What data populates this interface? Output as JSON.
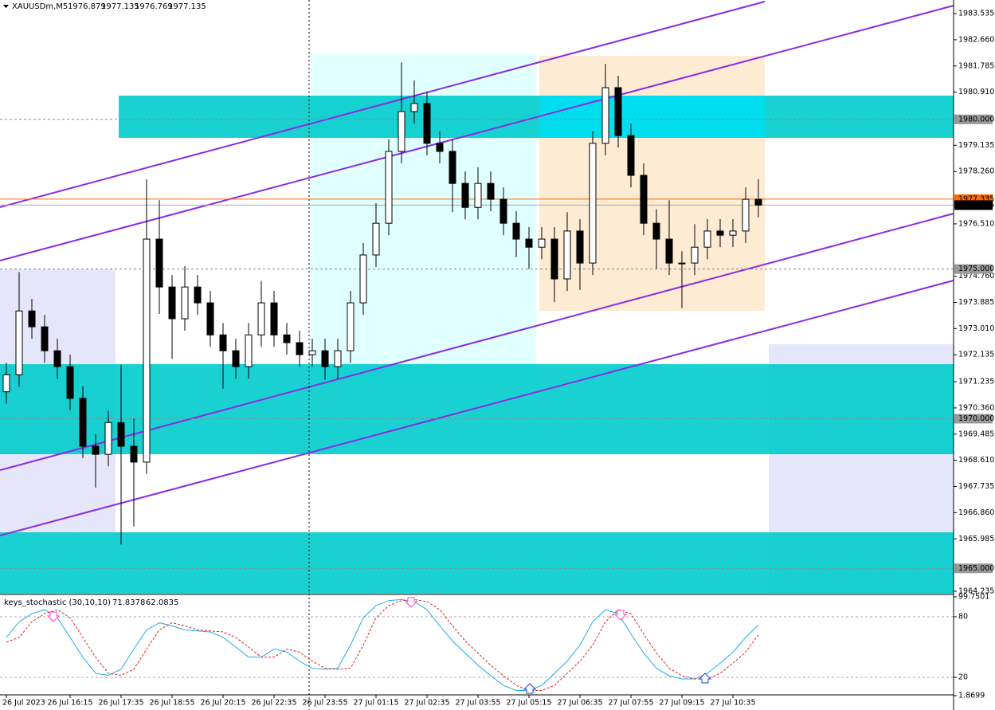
{
  "chart_data": [
    {
      "type": "candlestick",
      "symbol": "XAUUSDm,M5",
      "bar_open": 1976.879,
      "bar_high": 1977.135,
      "bar_low": 1976.769,
      "bar_close": 1977.135,
      "categories": [
        "26 Jul 2023",
        null,
        null,
        null,
        null,
        "26 Jul 16:15",
        null,
        null,
        null,
        "26 Jul 17:35",
        null,
        null,
        null,
        "26 Jul 18:55",
        null,
        null,
        null,
        "26 Jul 20:15",
        null,
        null,
        null,
        "26 Jul 22:35",
        null,
        null,
        null,
        "26 Jul 23:55",
        null,
        null,
        null,
        "27 Jul 01:15",
        null,
        null,
        null,
        "27 Jul 02:35",
        null,
        null,
        null,
        "27 Jul 03:55",
        null,
        null,
        null,
        "27 Jul 05:15",
        null,
        null,
        null,
        "27 Jul 06:35",
        null,
        null,
        null,
        "27 Jul 07:55",
        null,
        null,
        null,
        "27 Jul 09:15",
        null,
        null,
        null,
        "27 Jul 10:35",
        null,
        null
      ],
      "open": [
        1970.9,
        1971.47,
        1973.6,
        1973.07,
        1972.27,
        1971.74,
        1970.68,
        1969.08,
        1968.81,
        1969.87,
        1969.08,
        1968.55,
        1976.0,
        1974.4,
        1973.34,
        1974.4,
        1973.87,
        1972.8,
        1972.27,
        1971.74,
        1972.8,
        1973.87,
        1972.8,
        1972.54,
        1972.14,
        1972.27,
        1971.74,
        1972.27,
        1973.87,
        1975.47,
        1976.53,
        1978.93,
        1980.26,
        1980.53,
        1979.2,
        1978.93,
        1977.86,
        1977.06,
        1977.86,
        1977.33,
        1976.53,
        1976.0,
        1975.73,
        1976.0,
        1974.67,
        1976.27,
        1975.2,
        1979.2,
        1981.06,
        1979.46,
        1978.13,
        1976.53,
        1976.0,
        1975.2,
        1975.2,
        1975.73,
        1976.27,
        1976.13,
        1976.27,
        1977.33
      ],
      "high": [
        1971.87,
        1974.9,
        1974.0,
        1973.47,
        1972.67,
        1972.14,
        1971.08,
        1969.48,
        1970.27,
        1971.8,
        1970.0,
        1978.0,
        1977.3,
        1974.8,
        1975.1,
        1974.8,
        1974.27,
        1973.2,
        1972.67,
        1973.2,
        1974.6,
        1974.27,
        1973.2,
        1972.94,
        1972.67,
        1972.67,
        1972.67,
        1974.27,
        1975.87,
        1977.2,
        1979.33,
        1981.9,
        1981.3,
        1980.93,
        1979.6,
        1979.33,
        1978.26,
        1978.4,
        1978.26,
        1977.73,
        1976.93,
        1976.4,
        1976.4,
        1976.4,
        1976.9,
        1976.67,
        1979.6,
        1981.85,
        1981.46,
        1979.86,
        1978.53,
        1977.0,
        1977.3,
        1975.6,
        1976.5,
        1976.67,
        1976.67,
        1976.67,
        1977.73,
        1978.0
      ],
      "low": [
        1970.5,
        1971.07,
        1972.67,
        1971.87,
        1971.34,
        1970.28,
        1968.68,
        1967.7,
        1968.41,
        1965.8,
        1966.4,
        1968.15,
        1973.5,
        1972.0,
        1972.94,
        1973.47,
        1972.4,
        1971.0,
        1971.34,
        1971.34,
        1972.4,
        1972.4,
        1972.14,
        1971.74,
        1971.74,
        1971.3,
        1971.34,
        1971.87,
        1973.47,
        1975.07,
        1976.13,
        1978.53,
        1979.86,
        1978.8,
        1978.53,
        1976.9,
        1976.66,
        1976.66,
        1976.93,
        1976.13,
        1975.4,
        1975.0,
        1975.33,
        1973.9,
        1974.27,
        1974.3,
        1974.8,
        1978.8,
        1979.06,
        1977.73,
        1976.13,
        1975.0,
        1974.8,
        1973.7,
        1974.8,
        1975.33,
        1975.73,
        1975.73,
        1975.87,
        1976.73
      ],
      "close": [
        1971.47,
        1973.6,
        1973.07,
        1972.27,
        1971.74,
        1970.68,
        1969.08,
        1968.81,
        1969.87,
        1969.08,
        1968.55,
        1976.0,
        1974.4,
        1973.34,
        1974.4,
        1973.87,
        1972.8,
        1972.27,
        1971.74,
        1972.8,
        1973.87,
        1972.8,
        1972.54,
        1972.14,
        1972.27,
        1971.74,
        1972.27,
        1973.87,
        1975.47,
        1976.53,
        1978.93,
        1980.26,
        1980.53,
        1979.2,
        1978.93,
        1977.86,
        1977.06,
        1977.86,
        1977.33,
        1976.53,
        1976.0,
        1975.73,
        1976.0,
        1974.67,
        1976.27,
        1975.2,
        1979.2,
        1981.06,
        1979.46,
        1978.13,
        1976.53,
        1976.0,
        1975.2,
        1975.2,
        1975.73,
        1976.27,
        1976.13,
        1976.27,
        1977.33,
        1977.135
      ],
      "ylim": [
        1964.155,
        1983.988
      ],
      "yticks": [
        {
          "value": 1983.535,
          "label": "1983.535"
        },
        {
          "value": 1982.66,
          "label": "1982.660"
        },
        {
          "value": 1981.785,
          "label": "1981.785"
        },
        {
          "value": 1980.91,
          "label": "1980.910"
        },
        {
          "value": 1979.135,
          "label": "1979.135"
        },
        {
          "value": 1978.26,
          "label": "1978.260"
        },
        {
          "value": 1976.51,
          "label": "1976.510"
        },
        {
          "value": 1974.76,
          "label": "1974.760"
        },
        {
          "value": 1973.885,
          "label": "1973.885"
        },
        {
          "value": 1973.01,
          "label": "1973.010"
        },
        {
          "value": 1972.135,
          "label": "1972.135"
        },
        {
          "value": 1971.235,
          "label": "1971.235"
        },
        {
          "value": 1970.36,
          "label": "1970.360"
        },
        {
          "value": 1969.485,
          "label": "1969.485"
        },
        {
          "value": 1968.61,
          "label": "1968.610"
        },
        {
          "value": 1967.735,
          "label": "1967.735"
        },
        {
          "value": 1966.86,
          "label": "1966.860"
        },
        {
          "value": 1965.985,
          "label": "1965.985"
        },
        {
          "value": 1964.235,
          "label": "1964.235"
        }
      ],
      "levels": [
        {
          "value": 1980,
          "label": "1980.000"
        },
        {
          "value": 1975,
          "label": "1975.000"
        },
        {
          "value": 1970,
          "label": "1970.000"
        },
        {
          "value": 1965,
          "label": "1965.000"
        }
      ],
      "ask_line": 1977.335,
      "ask_color": "#ff6a00",
      "grid": false,
      "up_color": "#ffffff",
      "down_color": "#000000"
    },
    {
      "type": "line",
      "title": "keys_stochastic (30,10,10)",
      "series": [
        {
          "color": "#22aaee",
          "dashed": false,
          "values": [
            59.5,
            75,
            83,
            87,
            79,
            59.5,
            40,
            24,
            22,
            28,
            48,
            67,
            74,
            71,
            67,
            66,
            65,
            59.5,
            50,
            40,
            40,
            48,
            45,
            36,
            29,
            28,
            29,
            52,
            79,
            91,
            96,
            97,
            95,
            87,
            71,
            56,
            44,
            32,
            21.6,
            12,
            7,
            7,
            12,
            24,
            36,
            52,
            75,
            87,
            83,
            63,
            44,
            29,
            21.6,
            18.4,
            18.4,
            24,
            34,
            45,
            59.5,
            71.8378
          ]
        },
        {
          "color": "#dd2222",
          "dashed": true,
          "values": [
            55,
            59.5,
            75,
            83,
            87,
            79,
            59.5,
            40,
            24,
            22,
            28,
            48,
            67,
            74,
            71,
            67,
            66,
            65,
            59.5,
            50,
            40,
            40,
            48,
            45,
            36,
            29,
            28,
            29,
            52,
            79,
            91,
            96,
            97,
            95,
            87,
            71,
            56,
            44,
            32,
            21.6,
            12,
            7,
            7,
            12,
            24,
            36,
            52,
            75,
            87,
            83,
            63,
            44,
            29,
            21.6,
            18.4,
            18.4,
            24,
            34,
            45,
            62.0835
          ]
        }
      ],
      "ylim": [
        -7.6,
        100.5
      ],
      "yticks": [
        99.7501,
        80,
        20,
        1.8699
      ],
      "grid_ticks": [
        80,
        20
      ]
    }
  ]
}
